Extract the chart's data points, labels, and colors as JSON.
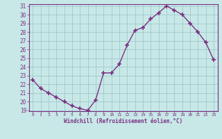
{
  "x": [
    0,
    1,
    2,
    3,
    4,
    5,
    6,
    7,
    8,
    9,
    10,
    11,
    12,
    13,
    14,
    15,
    16,
    17,
    18,
    19,
    20,
    21,
    22,
    23
  ],
  "y": [
    22.5,
    21.5,
    21.0,
    20.5,
    20.0,
    19.5,
    19.2,
    19.0,
    20.2,
    23.3,
    23.3,
    24.3,
    26.5,
    28.2,
    28.5,
    29.5,
    30.2,
    31.0,
    30.5,
    30.0,
    29.0,
    28.0,
    26.8,
    24.8
  ],
  "line_color": "#7a3080",
  "marker": "+",
  "bg_color": "#c8e8e8",
  "grid_color": "#a0c8c8",
  "xlabel": "Windchill (Refroidissement éolien,°C)",
  "ylim": [
    19,
    31
  ],
  "xlim": [
    -0.5,
    23.5
  ],
  "yticks": [
    19,
    20,
    21,
    22,
    23,
    24,
    25,
    26,
    27,
    28,
    29,
    30,
    31
  ],
  "xticks": [
    0,
    1,
    2,
    3,
    4,
    5,
    6,
    7,
    8,
    9,
    10,
    11,
    12,
    13,
    14,
    15,
    16,
    17,
    18,
    19,
    20,
    21,
    22,
    23
  ],
  "xtick_labels": [
    "0",
    "1",
    "2",
    "3",
    "4",
    "5",
    "6",
    "7",
    "8",
    "9",
    "10",
    "11",
    "12",
    "13",
    "14",
    "15",
    "16",
    "17",
    "18",
    "19",
    "20",
    "21",
    "22",
    "23"
  ],
  "line_width": 1.0,
  "marker_size": 4,
  "marker_edge_width": 1.2
}
